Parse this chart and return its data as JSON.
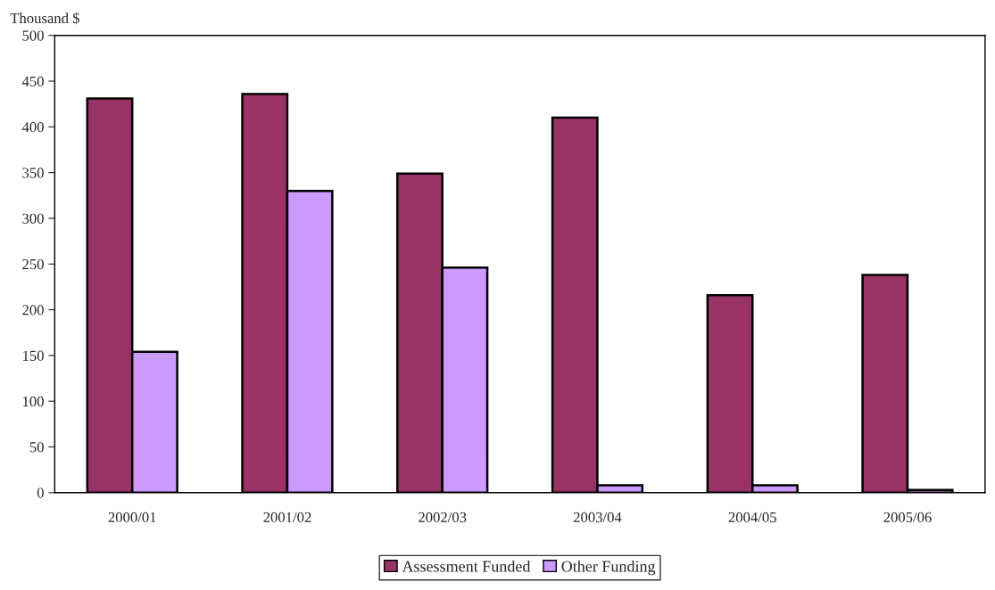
{
  "chart_data": {
    "type": "bar",
    "ylabel": "Thousand $",
    "categories": [
      "2000/01",
      "2001/02",
      "2002/03",
      "2003/04",
      "2004/05",
      "2005/06"
    ],
    "series": [
      {
        "name": "Assessment Funded",
        "color": "#993366",
        "values": [
          431,
          436,
          349,
          410,
          216,
          238
        ]
      },
      {
        "name": "Other Funding",
        "color": "#cc99ff",
        "values": [
          154,
          330,
          246,
          8,
          8,
          3
        ]
      }
    ],
    "ylim": [
      0,
      500
    ],
    "yticks": [
      0,
      50,
      100,
      150,
      200,
      250,
      300,
      350,
      400,
      450,
      500
    ],
    "grid": false,
    "legend": "bottom"
  }
}
